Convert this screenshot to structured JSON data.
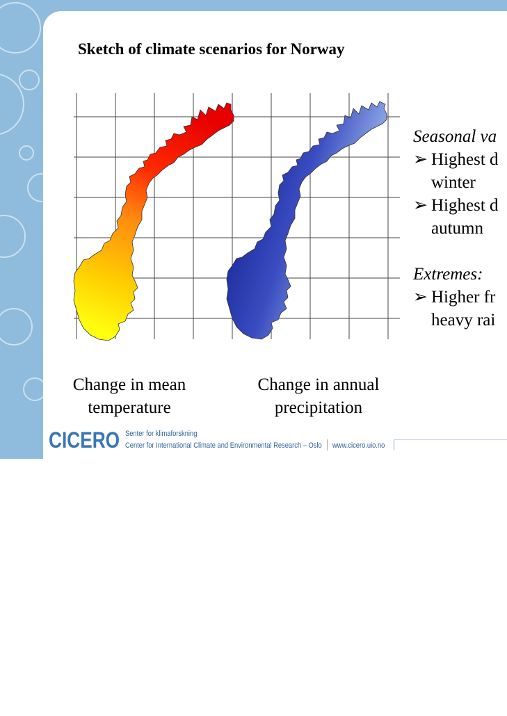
{
  "slide": {
    "title": "Sketch of climate scenarios for Norway",
    "captions": {
      "temperature": [
        "Change in mean",
        "temperature"
      ],
      "precipitation": [
        "Change in annual",
        "precipitation"
      ]
    },
    "right_column": {
      "seasonal_heading": "Seasonal va",
      "seasonal_items": [
        [
          "Highest d",
          "winter"
        ],
        [
          "Highest d",
          "autumn"
        ]
      ],
      "extremes_heading": "Extremes:",
      "extremes_items": [
        [
          "Higher fr",
          "heavy rai"
        ]
      ]
    },
    "bullet_glyph": "➢"
  },
  "footer": {
    "logo": "CICERO",
    "line1": "Senter for klimaforskning",
    "line2": "Center for International Climate and Environmental Research – Oslo",
    "url": "www.cicero.uio.no"
  },
  "colors": {
    "background": "#8fbcdc",
    "temperature_gradient": [
      "#f00000",
      "#ff6a00",
      "#ffd800",
      "#ffff00"
    ],
    "precipitation_gradient": [
      "#0a1a90",
      "#3a4ec0",
      "#8fa8e6",
      "#d8f0ff"
    ],
    "logo": "#3a76b4"
  }
}
